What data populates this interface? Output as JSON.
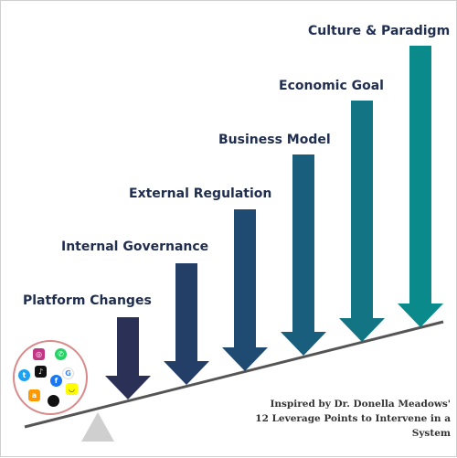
{
  "levels": [
    {
      "label": "Platform Changes",
      "color": "#2a3056"
    },
    {
      "label": "Internal Governance",
      "color": "#233e67"
    },
    {
      "label": "External Regulation",
      "color": "#1f4b73"
    },
    {
      "label": "Business Model",
      "color": "#1a5e7e"
    },
    {
      "label": "Economic Goal",
      "color": "#137584"
    },
    {
      "label": "Culture & Paradigm",
      "color": "#0a8a8a"
    }
  ],
  "caption": {
    "line1": "Inspired by Dr. Donella Meadows'",
    "line2": "12 Leverage Points to Intervene in a System"
  },
  "platform_icons": [
    "instagram-icon",
    "whatsapp-icon",
    "twitter-icon",
    "tiktok-icon",
    "google-icon",
    "facebook-icon",
    "snapchat-icon",
    "amazon-icon",
    "apple-icon"
  ],
  "colors": {
    "fulcrum": "#cfcfcf",
    "lever": "#555555",
    "circle_border": "#d98a8a"
  }
}
